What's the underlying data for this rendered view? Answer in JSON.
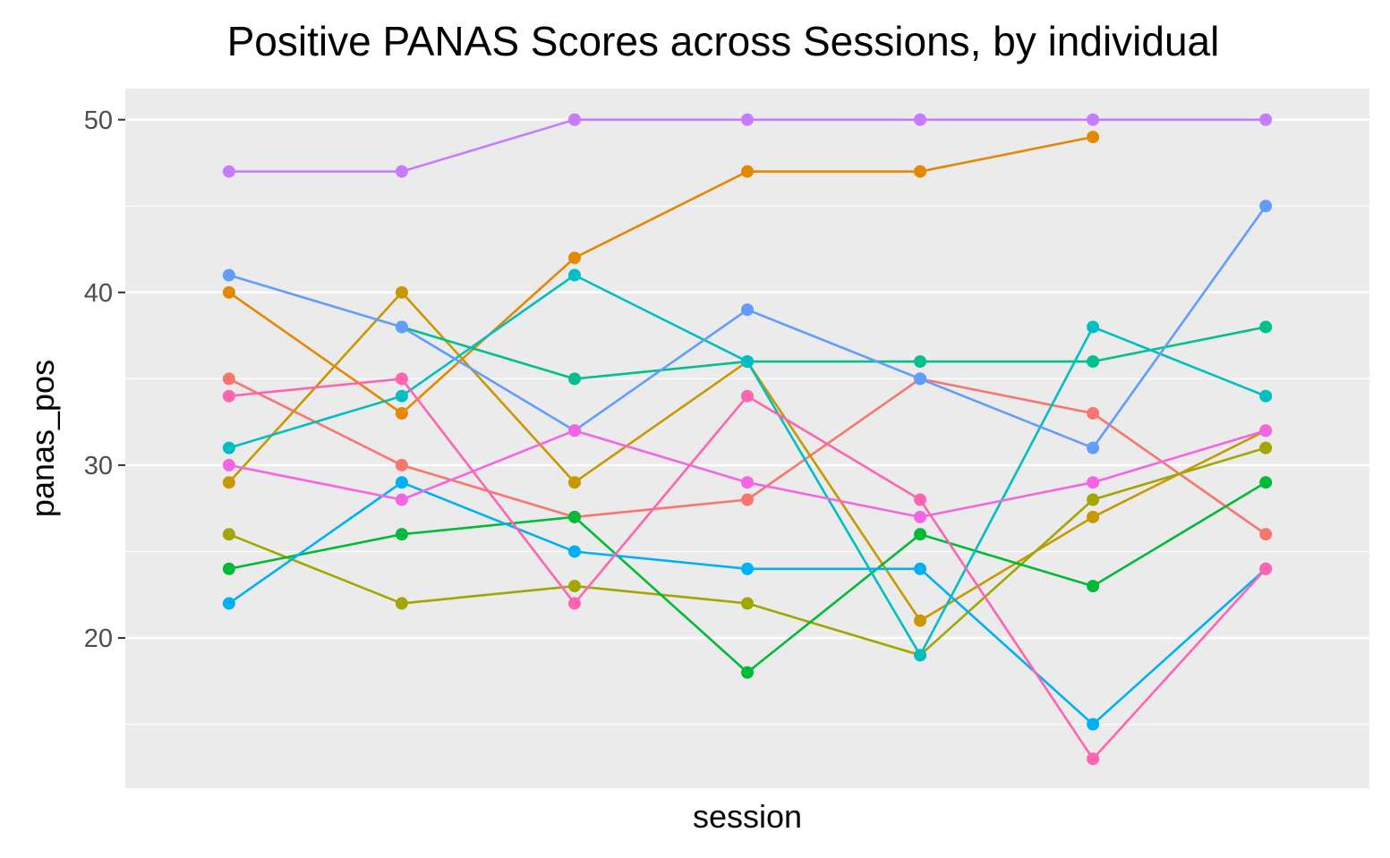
{
  "chart_data": {
    "type": "line",
    "title": "Positive PANAS Scores across Sessions, by individual",
    "xlabel": "session",
    "ylabel": "panas_pos",
    "x": [
      1,
      2,
      3,
      4,
      5,
      6,
      7
    ],
    "xlim": [
      0.4,
      7.6
    ],
    "ylim": [
      11.3,
      51.8
    ],
    "yticks": [
      20,
      30,
      40,
      50
    ],
    "ytick_labels": [
      "20",
      "30",
      "40",
      "50"
    ],
    "y_minor_ticks": [
      15,
      25,
      35,
      45
    ],
    "grid": true,
    "legend": "none",
    "panel_color": "#ebebeb",
    "grid_color": "#ffffff",
    "series": [
      {
        "color": "#f8766d",
        "values": [
          35,
          30,
          27,
          28,
          35,
          33,
          26
        ]
      },
      {
        "color": "#e58700",
        "values": [
          40,
          33,
          42,
          47,
          47,
          49,
          null
        ]
      },
      {
        "color": "#c99800",
        "values": [
          29,
          40,
          29,
          36,
          21,
          27,
          32
        ]
      },
      {
        "color": "#a3a500",
        "values": [
          26,
          22,
          23,
          22,
          19,
          28,
          31
        ]
      },
      {
        "color": "#00ba38",
        "values": [
          24,
          26,
          27,
          18,
          26,
          23,
          29
        ]
      },
      {
        "color": "#00c08b",
        "values": [
          null,
          38,
          35,
          36,
          36,
          36,
          38
        ]
      },
      {
        "color": "#00bfc4",
        "values": [
          31,
          34,
          41,
          36,
          19,
          38,
          34
        ]
      },
      {
        "color": "#00b0f6",
        "values": [
          22,
          29,
          25,
          24,
          24,
          15,
          24
        ]
      },
      {
        "color": "#619cff",
        "values": [
          41,
          38,
          32,
          39,
          35,
          31,
          45
        ]
      },
      {
        "color": "#c77cff",
        "values": [
          47,
          47,
          50,
          50,
          50,
          50,
          50
        ]
      },
      {
        "color": "#f564e3",
        "values": [
          30,
          28,
          32,
          29,
          27,
          29,
          32
        ]
      },
      {
        "color": "#ff64b0",
        "values": [
          34,
          35,
          22,
          34,
          28,
          13,
          24
        ]
      }
    ]
  }
}
